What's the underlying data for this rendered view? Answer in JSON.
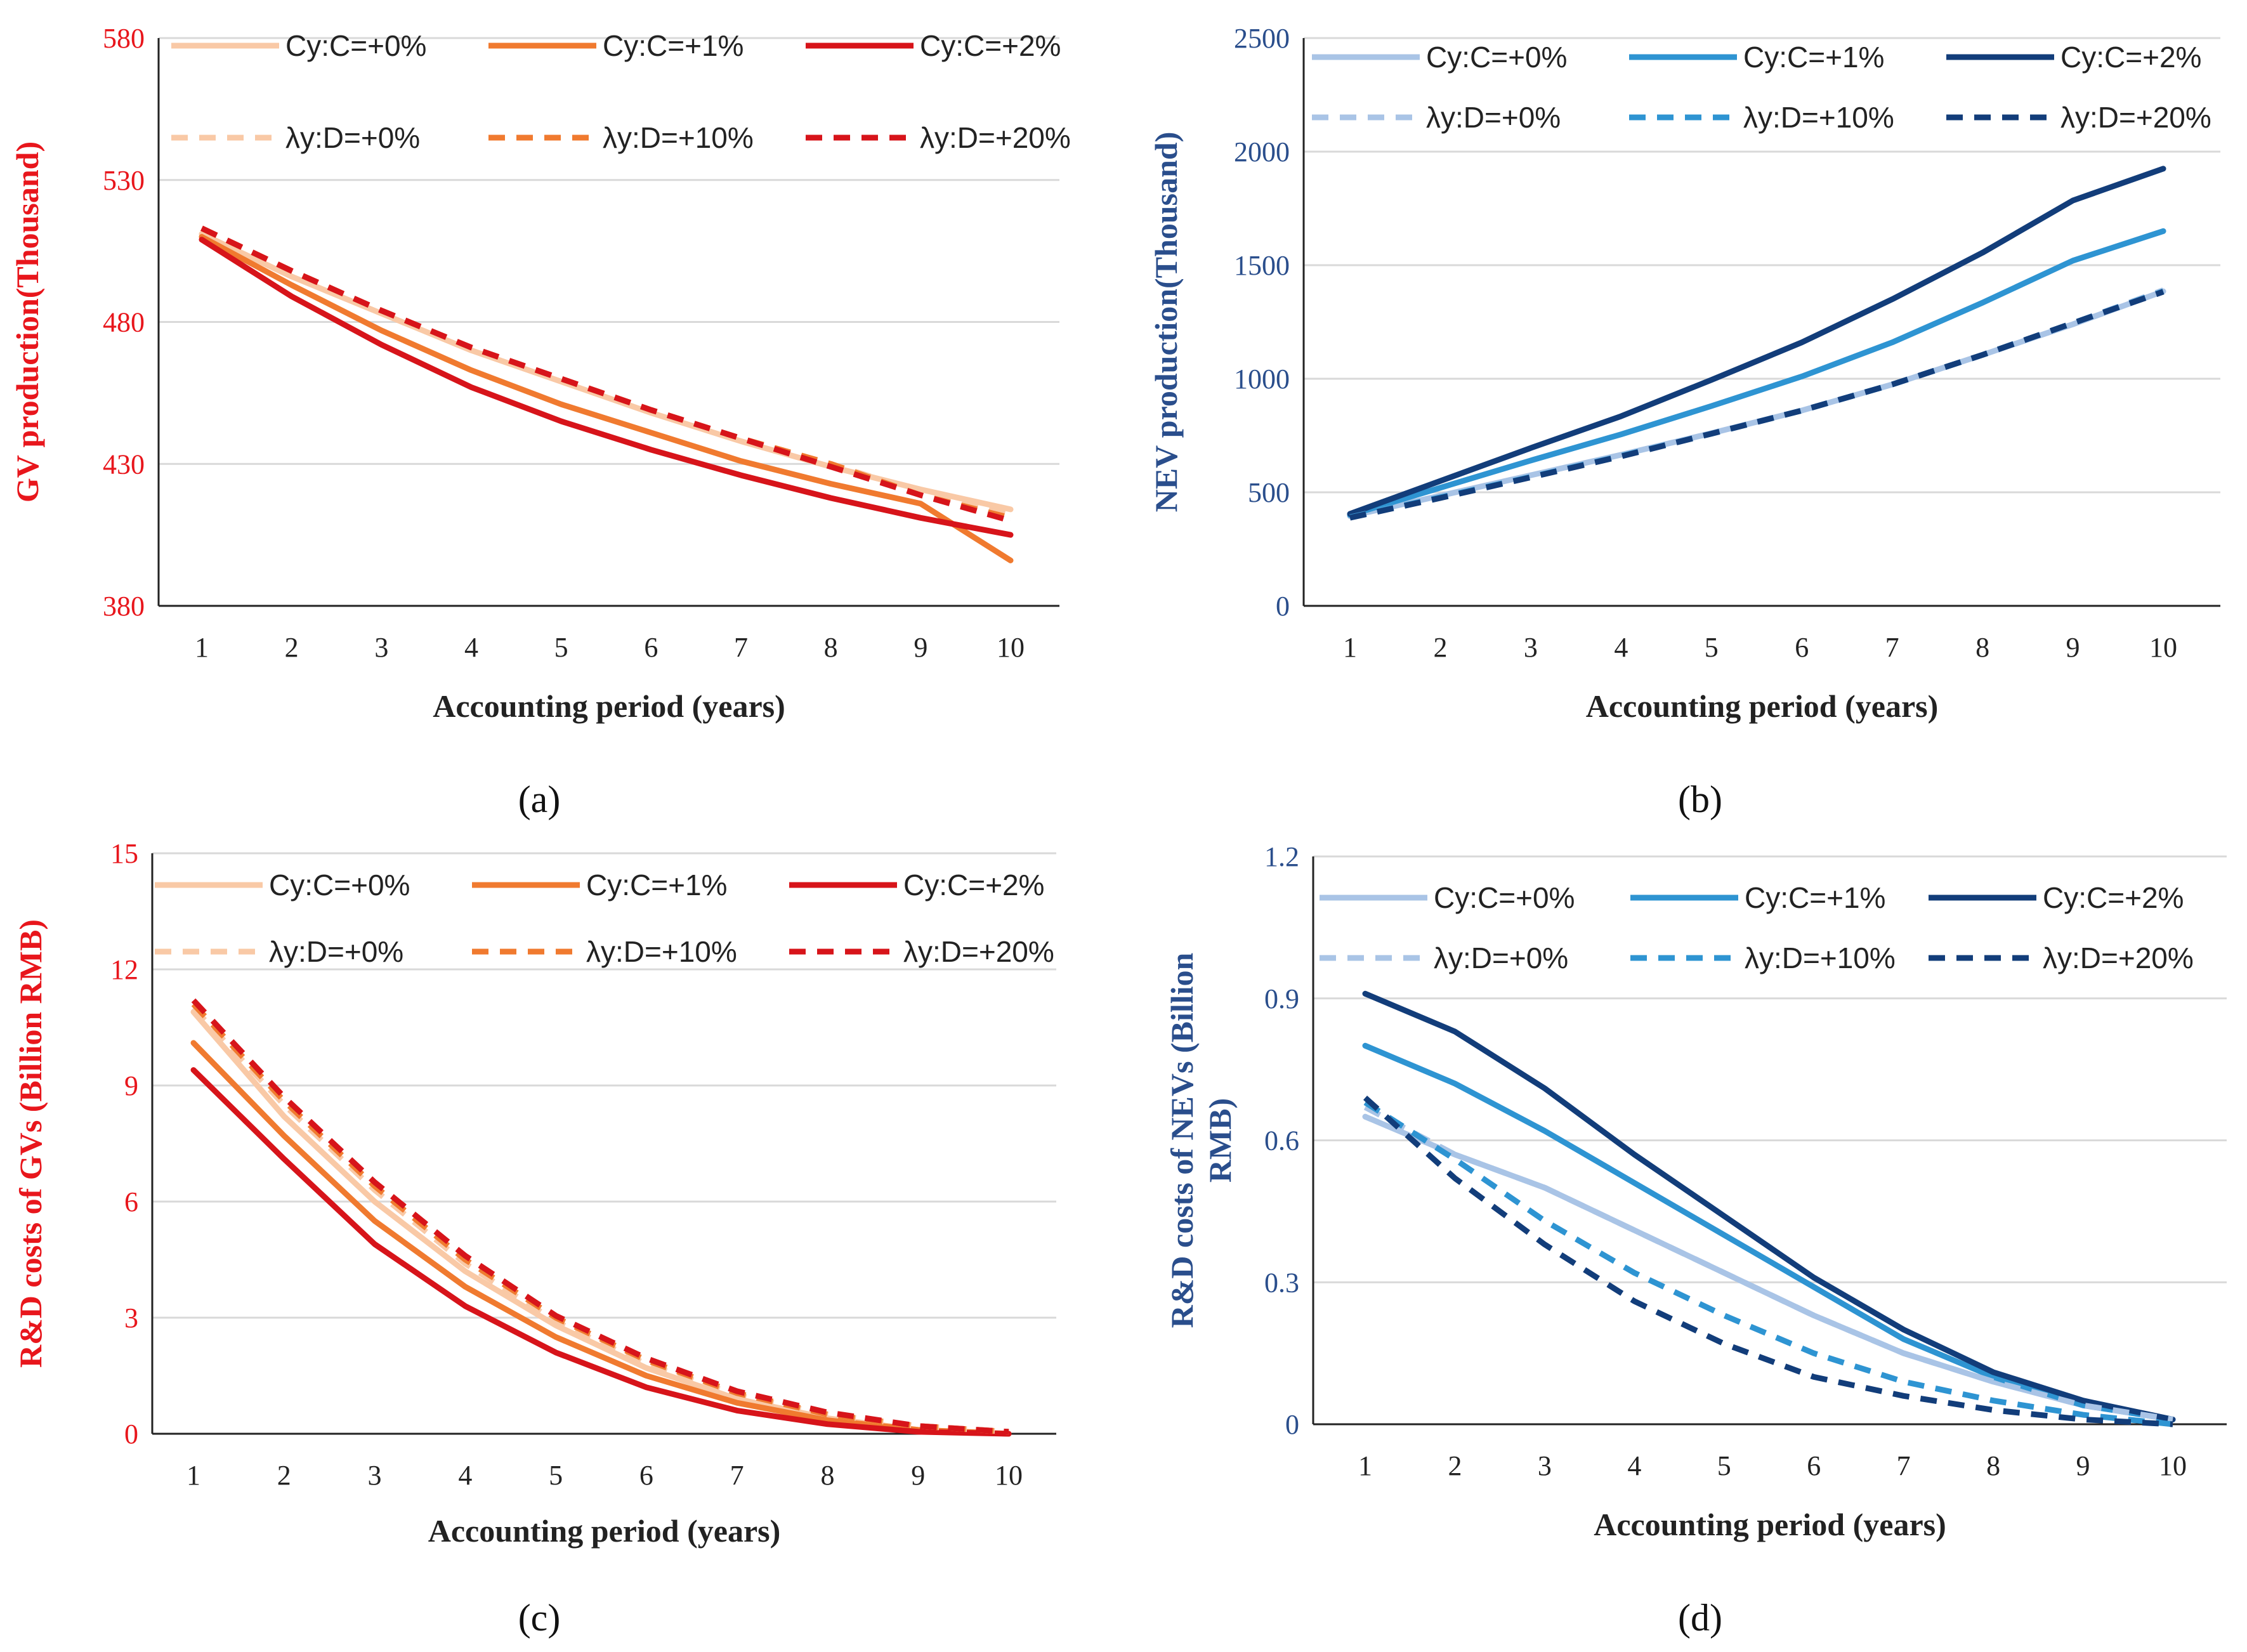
{
  "chart_data": [
    {
      "type": "line",
      "panel_label": "(a)",
      "xlabel": "Accounting period (years)",
      "ylabel": "GV production(Thousand)",
      "ylim": [
        380,
        580
      ],
      "yticks": [
        "380",
        "430",
        "480",
        "530",
        "580"
      ],
      "x": [
        1,
        2,
        3,
        4,
        5,
        6,
        7,
        8,
        9,
        10
      ],
      "xticks": [
        "1",
        "2",
        "3",
        "4",
        "5",
        "6",
        "7",
        "8",
        "9",
        "10"
      ],
      "grid": true,
      "legend_position": "top",
      "axis_color": "#e8161c",
      "series": [
        {
          "name": "Cy:C=+0%",
          "color": "#f9c9a6",
          "dash": false,
          "values": [
            511,
            496,
            483,
            470,
            459,
            448,
            438,
            429,
            421,
            414
          ]
        },
        {
          "name": "Cy:C=+1%",
          "color": "#f07a2f",
          "dash": false,
          "values": [
            510,
            493,
            477,
            463,
            451,
            441,
            431,
            423,
            416,
            396
          ]
        },
        {
          "name": "Cy:C=+2%",
          "color": "#d7141a",
          "dash": false,
          "values": [
            509,
            489,
            472,
            457,
            445,
            435,
            426,
            418,
            411,
            405
          ]
        },
        {
          "name": "λy:D=+0%",
          "color": "#f9c9a6",
          "dash": true,
          "values": [
            513,
            498,
            484,
            471,
            460,
            449,
            439,
            430,
            420,
            412
          ]
        },
        {
          "name": "λy:D=+10%",
          "color": "#f07a2f",
          "dash": true,
          "values": [
            513,
            498,
            484,
            471,
            460,
            449,
            439,
            430,
            419,
            411
          ]
        },
        {
          "name": "λy:D=+20%",
          "color": "#d7141a",
          "dash": true,
          "values": [
            513,
            498,
            484,
            471,
            460,
            449,
            439,
            429,
            419,
            410
          ]
        }
      ]
    },
    {
      "type": "line",
      "panel_label": "(b)",
      "xlabel": "Accounting period (years)",
      "ylabel": "NEV production(Thousand)",
      "ylim": [
        0,
        2500
      ],
      "yticks": [
        "0",
        "500",
        "1000",
        "1500",
        "2000",
        "2500"
      ],
      "x": [
        1,
        2,
        3,
        4,
        5,
        6,
        7,
        8,
        9,
        10
      ],
      "xticks": [
        "1",
        "2",
        "3",
        "4",
        "5",
        "6",
        "7",
        "8",
        "9",
        "10"
      ],
      "grid": true,
      "legend_position": "top",
      "axis_color": "#2a4e8c",
      "series": [
        {
          "name": "Cy:C=+0%",
          "color": "#a9c4e6",
          "dash": false,
          "values": [
            395,
            485,
            575,
            665,
            760,
            860,
            975,
            1105,
            1240,
            1385
          ]
        },
        {
          "name": "Cy:C=+1%",
          "color": "#2e94d2",
          "dash": false,
          "values": [
            400,
            520,
            640,
            755,
            880,
            1010,
            1160,
            1335,
            1520,
            1650
          ]
        },
        {
          "name": "Cy:C=+2%",
          "color": "#123d7a",
          "dash": false,
          "values": [
            405,
            550,
            695,
            835,
            995,
            1160,
            1350,
            1555,
            1785,
            1925
          ]
        },
        {
          "name": "λy:D=+0%",
          "color": "#a9c4e6",
          "dash": true,
          "values": [
            390,
            480,
            570,
            660,
            760,
            860,
            975,
            1105,
            1245,
            1390
          ]
        },
        {
          "name": "λy:D=+10%",
          "color": "#2e94d2",
          "dash": true,
          "values": [
            390,
            478,
            568,
            660,
            758,
            860,
            975,
            1105,
            1245,
            1385
          ]
        },
        {
          "name": "λy:D=+20%",
          "color": "#123d7a",
          "dash": true,
          "values": [
            388,
            475,
            566,
            658,
            758,
            860,
            975,
            1105,
            1245,
            1383
          ]
        }
      ]
    },
    {
      "type": "line",
      "panel_label": "(c)",
      "xlabel": "Accounting period (years)",
      "ylabel": "R&D costs of GVs (Billion RMB)",
      "ylim": [
        0,
        15
      ],
      "yticks": [
        "0",
        "3",
        "6",
        "9",
        "12",
        "15"
      ],
      "x": [
        1,
        2,
        3,
        4,
        5,
        6,
        7,
        8,
        9,
        10
      ],
      "xticks": [
        "1",
        "2",
        "3",
        "4",
        "5",
        "6",
        "7",
        "8",
        "9",
        "10"
      ],
      "grid": true,
      "legend_position": "top",
      "axis_color": "#e8161c",
      "series": [
        {
          "name": "Cy:C=+0%",
          "color": "#f9c9a6",
          "dash": false,
          "values": [
            10.9,
            8.2,
            6.0,
            4.2,
            2.8,
            1.7,
            0.9,
            0.4,
            0.1,
            0.0
          ]
        },
        {
          "name": "Cy:C=+1%",
          "color": "#f07a2f",
          "dash": false,
          "values": [
            10.1,
            7.7,
            5.5,
            3.8,
            2.5,
            1.5,
            0.8,
            0.35,
            0.1,
            0.0
          ]
        },
        {
          "name": "Cy:C=+2%",
          "color": "#d7141a",
          "dash": false,
          "values": [
            9.4,
            7.1,
            4.9,
            3.3,
            2.1,
            1.2,
            0.6,
            0.25,
            0.05,
            0.0
          ]
        },
        {
          "name": "λy:D=+0%",
          "color": "#f9c9a6",
          "dash": true,
          "values": [
            11.0,
            8.5,
            6.3,
            4.4,
            2.9,
            1.8,
            1.0,
            0.5,
            0.2,
            0.05
          ]
        },
        {
          "name": "λy:D=+10%",
          "color": "#f07a2f",
          "dash": true,
          "values": [
            11.1,
            8.6,
            6.4,
            4.5,
            3.0,
            1.9,
            1.05,
            0.5,
            0.2,
            0.05
          ]
        },
        {
          "name": "λy:D=+20%",
          "color": "#d7141a",
          "dash": true,
          "values": [
            11.2,
            8.7,
            6.5,
            4.6,
            3.05,
            1.95,
            1.1,
            0.55,
            0.2,
            0.05
          ]
        }
      ]
    },
    {
      "type": "line",
      "panel_label": "(d)",
      "xlabel": "Accounting period (years)",
      "ylabel": "R&D costs of NEVs (Billion RMB)",
      "ylabel_lines": [
        "R&D costs of NEVs (Billion",
        "RMB)"
      ],
      "ylim": [
        0,
        1.2
      ],
      "yticks": [
        "0",
        "0.3",
        "0.6",
        "0.9",
        "1.2"
      ],
      "x": [
        1,
        2,
        3,
        4,
        5,
        6,
        7,
        8,
        9,
        10
      ],
      "xticks": [
        "1",
        "2",
        "3",
        "4",
        "5",
        "6",
        "7",
        "8",
        "9",
        "10"
      ],
      "grid": true,
      "legend_position": "top",
      "axis_color": "#2a4e8c",
      "series": [
        {
          "name": "Cy:C=+0%",
          "color": "#a9c4e6",
          "dash": false,
          "values": [
            0.65,
            0.57,
            0.5,
            0.41,
            0.32,
            0.23,
            0.15,
            0.09,
            0.04,
            0.01
          ]
        },
        {
          "name": "Cy:C=+1%",
          "color": "#2e94d2",
          "dash": false,
          "values": [
            0.8,
            0.72,
            0.62,
            0.51,
            0.4,
            0.29,
            0.18,
            0.1,
            0.04,
            0.01
          ]
        },
        {
          "name": "Cy:C=+2%",
          "color": "#123d7a",
          "dash": false,
          "values": [
            0.91,
            0.83,
            0.71,
            0.57,
            0.44,
            0.31,
            0.2,
            0.11,
            0.05,
            0.01
          ]
        },
        {
          "name": "λy:D=+0%",
          "color": "#a9c4e6",
          "dash": true,
          "values": [
            0.67,
            0.57,
            0.5,
            0.41,
            0.32,
            0.23,
            0.15,
            0.09,
            0.04,
            0.01
          ]
        },
        {
          "name": "λy:D=+10%",
          "color": "#2e94d2",
          "dash": true,
          "values": [
            0.68,
            0.56,
            0.43,
            0.32,
            0.23,
            0.15,
            0.09,
            0.05,
            0.02,
            0.0
          ]
        },
        {
          "name": "λy:D=+20%",
          "color": "#123d7a",
          "dash": true,
          "values": [
            0.69,
            0.52,
            0.38,
            0.26,
            0.17,
            0.1,
            0.06,
            0.03,
            0.01,
            0.0
          ]
        }
      ]
    }
  ]
}
